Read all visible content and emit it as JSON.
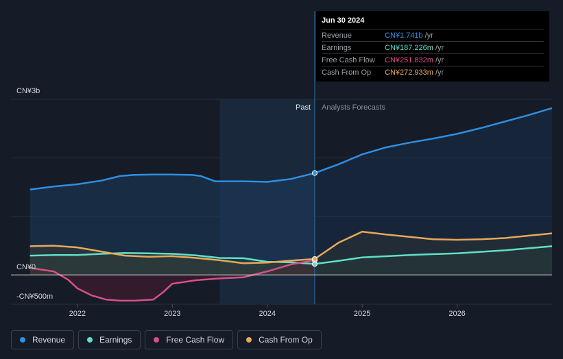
{
  "chart_data": {
    "type": "line",
    "currency_prefix": "CN¥",
    "y_axis_labels": [
      "CN¥3b",
      "CN¥0",
      "-CN¥500m"
    ],
    "x_tick_labels": [
      "2022",
      "2023",
      "2024",
      "2025",
      "2026"
    ],
    "x_ticks": [
      2022,
      2023,
      2024,
      2025,
      2026
    ],
    "ylim": [
      -500,
      3000
    ],
    "xlim": [
      2021.3,
      2027.0
    ],
    "divider_x": 2024.5,
    "highlight_start_x": 2023.5,
    "past_label": "Past",
    "forecast_label": "Analysts Forecasts",
    "series": [
      {
        "name": "Revenue",
        "color": "#2f8fe0",
        "fill": "#1b3a5c",
        "past": [
          [
            2021.5,
            1460
          ],
          [
            2021.75,
            1510
          ],
          [
            2022.0,
            1550
          ],
          [
            2022.25,
            1610
          ],
          [
            2022.45,
            1690
          ],
          [
            2022.6,
            1710
          ],
          [
            2022.8,
            1715
          ],
          [
            2023.0,
            1715
          ],
          [
            2023.2,
            1710
          ],
          [
            2023.3,
            1690
          ],
          [
            2023.45,
            1600
          ],
          [
            2023.6,
            1600
          ],
          [
            2023.75,
            1600
          ],
          [
            2024.0,
            1590
          ],
          [
            2024.25,
            1640
          ],
          [
            2024.5,
            1741
          ]
        ],
        "forecast": [
          [
            2024.5,
            1741
          ],
          [
            2024.75,
            1890
          ],
          [
            2025.0,
            2060
          ],
          [
            2025.25,
            2180
          ],
          [
            2025.5,
            2260
          ],
          [
            2025.75,
            2330
          ],
          [
            2026.0,
            2410
          ],
          [
            2026.25,
            2510
          ],
          [
            2026.5,
            2620
          ],
          [
            2026.75,
            2730
          ],
          [
            2027.0,
            2850
          ]
        ]
      },
      {
        "name": "Earnings",
        "color": "#5fe0c8",
        "fill": "#1f4440",
        "past": [
          [
            2021.5,
            330
          ],
          [
            2021.75,
            340
          ],
          [
            2022.0,
            340
          ],
          [
            2022.25,
            360
          ],
          [
            2022.5,
            375
          ],
          [
            2022.75,
            370
          ],
          [
            2023.0,
            360
          ],
          [
            2023.25,
            335
          ],
          [
            2023.5,
            290
          ],
          [
            2023.75,
            285
          ],
          [
            2024.0,
            225
          ],
          [
            2024.25,
            215
          ],
          [
            2024.5,
            187
          ]
        ],
        "forecast": [
          [
            2024.5,
            187
          ],
          [
            2024.75,
            240
          ],
          [
            2025.0,
            300
          ],
          [
            2025.5,
            340
          ],
          [
            2026.0,
            370
          ],
          [
            2026.5,
            420
          ],
          [
            2027.0,
            490
          ]
        ]
      },
      {
        "name": "Free Cash Flow",
        "color": "#d8508a",
        "fill": "#4a1c30",
        "past": [
          [
            2021.5,
            120
          ],
          [
            2021.75,
            60
          ],
          [
            2021.9,
            -80
          ],
          [
            2022.0,
            -230
          ],
          [
            2022.15,
            -350
          ],
          [
            2022.3,
            -420
          ],
          [
            2022.45,
            -440
          ],
          [
            2022.6,
            -440
          ],
          [
            2022.8,
            -420
          ],
          [
            2022.9,
            -300
          ],
          [
            2023.0,
            -150
          ],
          [
            2023.25,
            -90
          ],
          [
            2023.5,
            -60
          ],
          [
            2023.75,
            -40
          ],
          [
            2024.0,
            60
          ],
          [
            2024.25,
            180
          ],
          [
            2024.5,
            251.832
          ]
        ],
        "forecast": []
      },
      {
        "name": "Cash From Op",
        "color": "#e8a85a",
        "fill": "#3a3a34",
        "past": [
          [
            2021.5,
            490
          ],
          [
            2021.75,
            500
          ],
          [
            2022.0,
            470
          ],
          [
            2022.25,
            400
          ],
          [
            2022.5,
            330
          ],
          [
            2022.75,
            310
          ],
          [
            2023.0,
            320
          ],
          [
            2023.25,
            290
          ],
          [
            2023.5,
            250
          ],
          [
            2023.75,
            200
          ],
          [
            2024.0,
            210
          ],
          [
            2024.25,
            245
          ],
          [
            2024.5,
            272.933
          ]
        ],
        "forecast": [
          [
            2024.5,
            272.933
          ],
          [
            2024.75,
            550
          ],
          [
            2025.0,
            740
          ],
          [
            2025.25,
            690
          ],
          [
            2025.5,
            650
          ],
          [
            2025.75,
            610
          ],
          [
            2026.0,
            600
          ],
          [
            2026.25,
            610
          ],
          [
            2026.5,
            630
          ],
          [
            2026.75,
            670
          ],
          [
            2027.0,
            710
          ]
        ]
      }
    ]
  },
  "tooltip": {
    "date": "Jun 30 2024",
    "unit": "/yr",
    "rows": [
      {
        "label": "Revenue",
        "value": "CN¥1.741b",
        "color": "#2f8fe0"
      },
      {
        "label": "Earnings",
        "value": "CN¥187.226m",
        "color": "#5fe0c8"
      },
      {
        "label": "Free Cash Flow",
        "value": "CN¥251.832m",
        "color": "#d8508a"
      },
      {
        "label": "Cash From Op",
        "value": "CN¥272.933m",
        "color": "#e8a85a"
      }
    ]
  },
  "legend": [
    {
      "label": "Revenue",
      "color": "#2f8fe0"
    },
    {
      "label": "Earnings",
      "color": "#5fe0c8"
    },
    {
      "label": "Free Cash Flow",
      "color": "#d8508a"
    },
    {
      "label": "Cash From Op",
      "color": "#e8a85a"
    }
  ]
}
